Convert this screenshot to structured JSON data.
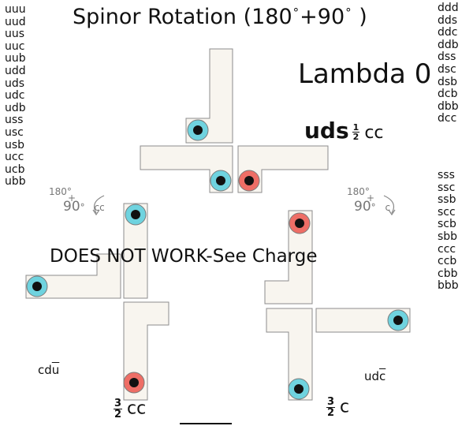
{
  "title": {
    "prefix": "Spinor Rotation (180",
    "mid": "+90",
    "suffix": ")",
    "degree": "°"
  },
  "left_list": [
    "uuu",
    "uud",
    "uus",
    "uuc",
    "uub",
    "udd",
    "uds",
    "udc",
    "udb",
    "uss",
    "usc",
    "usb",
    "ucc",
    "ucb",
    "ubb"
  ],
  "right_list_top": [
    "ddd",
    "dds",
    "ddc",
    "ddb",
    "dss",
    "dsc",
    "dsb",
    "dcb",
    "dbb",
    "dcc"
  ],
  "right_list_bottom": [
    "sss",
    "ssc",
    "ssb",
    "scc",
    "scb",
    "sbb",
    "ccc",
    "ccb",
    "cbb",
    "bbb"
  ],
  "heading": "Lambda 0",
  "particle": {
    "quarks": "uds",
    "fraction_num": "1",
    "fraction_den": "2",
    "suffix": "cc"
  },
  "warning": "DOES NOT WORK-See Charge",
  "rotation_left": {
    "top": "180",
    "plus": "+",
    "bottom": "90",
    "degree": "°",
    "direction": "cc"
  },
  "rotation_right": {
    "top": "180",
    "plus": "+",
    "bottom": "90",
    "degree": "°",
    "direction": "c"
  },
  "label_left": {
    "text": "cdu",
    "overlined": "u"
  },
  "label_right": {
    "text": "udc",
    "overlined": "c"
  },
  "bottom_left": {
    "num": "3",
    "den": "2",
    "suffix": "cc"
  },
  "bottom_right": {
    "num": "3",
    "den": "2",
    "suffix": "c"
  },
  "colors": {
    "cyan": "#6fd3df",
    "red": "#ee6e66",
    "block_fill": "#f8f5ef",
    "block_stroke": "#8c8c8c",
    "dot": "#111111"
  }
}
